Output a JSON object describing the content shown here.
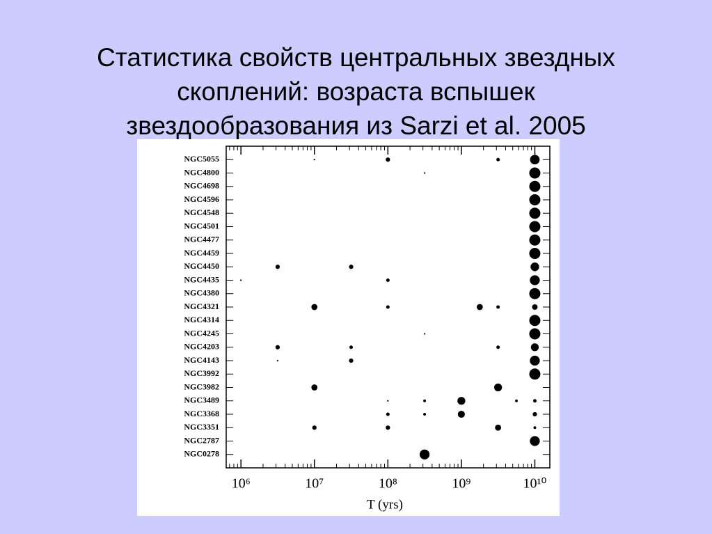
{
  "chart_data": {
    "type": "bubble",
    "title": "Статистика свойств центральных звездных скоплений: возраста вспышек звездообразования из Sarzi et al. 2005",
    "x_label": "T (yrs)",
    "x_log": true,
    "color": "#000000",
    "xlim": [
      630000,
      16000000000
    ],
    "xticks": [
      {
        "value": 1000000,
        "label": "10⁶"
      },
      {
        "value": 10000000,
        "label": "10⁷"
      },
      {
        "value": 100000000,
        "label": "10⁸"
      },
      {
        "value": 1000000000,
        "label": "10⁹"
      },
      {
        "value": 10000000000,
        "label": "10¹⁰"
      }
    ],
    "rows": [
      {
        "name": "NGC5055",
        "x": [
          10000000,
          100000000,
          3160000000,
          10000000000
        ],
        "sizes": [
          0.02,
          0.15,
          0.1,
          0.75
        ]
      },
      {
        "name": "NGC4800",
        "x": [
          316000000,
          10000000000
        ],
        "sizes": [
          0.02,
          1
        ]
      },
      {
        "name": "NGC4698",
        "x": [
          10000000000
        ],
        "sizes": [
          1
        ]
      },
      {
        "name": "NGC4596",
        "x": [
          10000000000
        ],
        "sizes": [
          1
        ]
      },
      {
        "name": "NGC4548",
        "x": [
          10000000000
        ],
        "sizes": [
          1
        ]
      },
      {
        "name": "NGC4501",
        "x": [
          10000000000
        ],
        "sizes": [
          1
        ]
      },
      {
        "name": "NGC4477",
        "x": [
          10000000000
        ],
        "sizes": [
          1
        ]
      },
      {
        "name": "NGC4459",
        "x": [
          10000000000
        ],
        "sizes": [
          1
        ]
      },
      {
        "name": "NGC4450",
        "x": [
          3160000,
          31600000,
          10000000000
        ],
        "sizes": [
          0.15,
          0.15,
          0.6
        ]
      },
      {
        "name": "NGC4435",
        "x": [
          1000000,
          100000000,
          10000000000
        ],
        "sizes": [
          0.02,
          0.1,
          0.8
        ]
      },
      {
        "name": "NGC4380",
        "x": [
          10000000000
        ],
        "sizes": [
          1
        ]
      },
      {
        "name": "NGC4321",
        "x": [
          10000000,
          100000000,
          1780000000,
          3160000000,
          10000000000
        ],
        "sizes": [
          0.3,
          0.1,
          0.3,
          0.1,
          0.25
        ]
      },
      {
        "name": "NGC4314",
        "x": [
          10000000000
        ],
        "sizes": [
          1
        ]
      },
      {
        "name": "NGC4245",
        "x": [
          316000000,
          10000000000
        ],
        "sizes": [
          0.02,
          1
        ]
      },
      {
        "name": "NGC4203",
        "x": [
          3160000,
          31600000,
          3160000000,
          10000000000
        ],
        "sizes": [
          0.15,
          0.1,
          0.1,
          0.5
        ]
      },
      {
        "name": "NGC4143",
        "x": [
          3160000,
          31600000,
          10000000000
        ],
        "sizes": [
          0.02,
          0.15,
          0.8
        ]
      },
      {
        "name": "NGC3992",
        "x": [
          10000000000
        ],
        "sizes": [
          1
        ]
      },
      {
        "name": "NGC3982",
        "x": [
          10000000,
          3160000000
        ],
        "sizes": [
          0.3,
          0.5
        ]
      },
      {
        "name": "NGC3489",
        "x": [
          100000000,
          316000000,
          1000000000,
          5620000000,
          10000000000
        ],
        "sizes": [
          0.02,
          0.06,
          0.5,
          0.06,
          0.1
        ]
      },
      {
        "name": "NGC3368",
        "x": [
          100000000,
          316000000,
          1000000000,
          10000000000
        ],
        "sizes": [
          0.1,
          0.06,
          0.4,
          0.15
        ]
      },
      {
        "name": "NGC3351",
        "x": [
          10000000,
          100000000,
          3160000000,
          10000000000
        ],
        "sizes": [
          0.15,
          0.15,
          0.3,
          0.06
        ]
      },
      {
        "name": "NGC2787",
        "x": [
          10000000000
        ],
        "sizes": [
          0.8
        ]
      },
      {
        "name": "NGC0278",
        "x": [
          316000000
        ],
        "sizes": [
          0.8
        ]
      }
    ]
  }
}
